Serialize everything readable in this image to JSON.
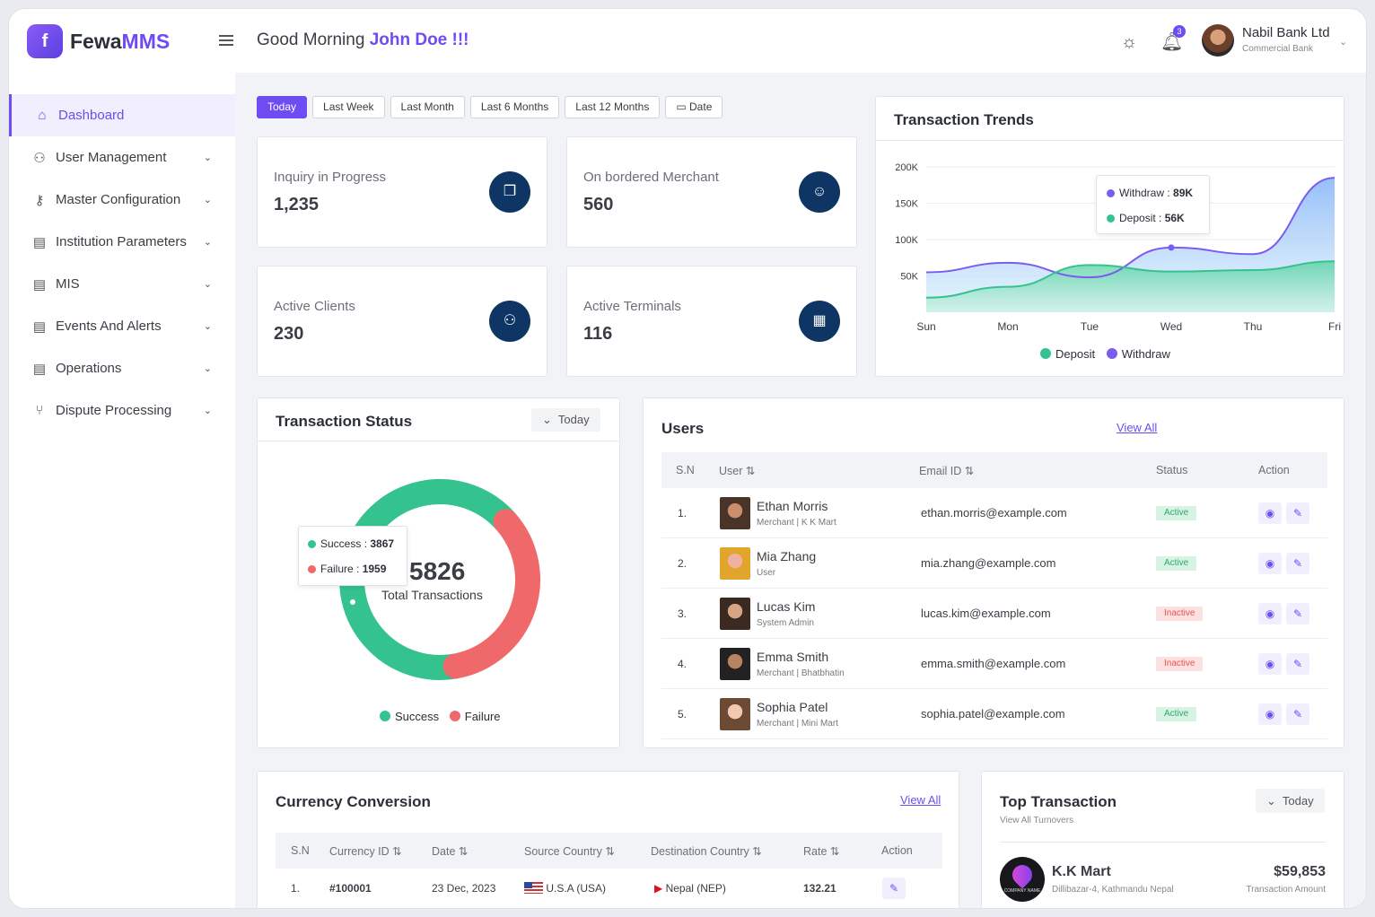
{
  "app": {
    "logo_mark": "f",
    "logo_brand": "Fewa",
    "logo_suffix": "MMS"
  },
  "header": {
    "greeting": "Good Morning",
    "user_name": "John Doe !!!",
    "notification_count": "3",
    "org_name": "Nabil Bank Ltd",
    "org_type": "Commercial Bank"
  },
  "sidebar": {
    "items": [
      {
        "label": "Dashboard",
        "icon": "home-icon"
      },
      {
        "label": "User Management",
        "icon": "users-icon"
      },
      {
        "label": "Master Configuration",
        "icon": "key-icon"
      },
      {
        "label": "Institution Parameters",
        "icon": "inbox-icon"
      },
      {
        "label": "MIS",
        "icon": "inbox-icon"
      },
      {
        "label": "Events And Alerts",
        "icon": "inbox-icon"
      },
      {
        "label": "Operations",
        "icon": "inbox-icon"
      },
      {
        "label": "Dispute Processing",
        "icon": "git-branch-icon"
      }
    ]
  },
  "filters": [
    "Today",
    "Last Week",
    "Last Month",
    "Last 6 Months",
    "Last 12 Months",
    "Date"
  ],
  "stats": [
    {
      "title": "Inquiry in Progress",
      "value": "1,235",
      "icon": "copy-icon"
    },
    {
      "title": "On bordered Merchant",
      "value": "560",
      "icon": "user-check-icon"
    },
    {
      "title": "Active Clients",
      "value": "230",
      "icon": "users-icon"
    },
    {
      "title": "Active Terminals",
      "value": "116",
      "icon": "terminal-icon"
    }
  ],
  "trends": {
    "title": "Transaction Trends",
    "tooltip": {
      "withdraw_label": "Withdraw",
      "withdraw_value": "89K",
      "deposit_label": "Deposit",
      "deposit_value": "56K"
    },
    "legend": [
      "Deposit",
      "Withdraw"
    ],
    "colors": {
      "deposit": "#34c38f",
      "withdraw": "#7b5cf0"
    }
  },
  "status": {
    "title": "Transaction Status",
    "period": "Today",
    "total": "5826",
    "total_label": "Total Transactions",
    "tooltip": {
      "success_label": "Success",
      "success_value": "3867",
      "failure_label": "Failure",
      "failure_value": "1959"
    },
    "legend": [
      "Success",
      "Failure"
    ],
    "colors": {
      "success": "#34c38f",
      "failure": "#f0696a"
    }
  },
  "users": {
    "title": "Users",
    "view_all": "View All",
    "headers": [
      "S.N",
      "User",
      "Email ID",
      "Status",
      "Action"
    ],
    "rows": [
      {
        "sn": "1.",
        "name": "Ethan Morris",
        "role": "Merchant | K K Mart",
        "email": "ethan.morris@example.com",
        "status": "Active"
      },
      {
        "sn": "2.",
        "name": "Mia Zhang",
        "role": "User",
        "email": "mia.zhang@example.com",
        "status": "Active"
      },
      {
        "sn": "3.",
        "name": "Lucas Kim",
        "role": "System Admin",
        "email": "lucas.kim@example.com",
        "status": "Inactive"
      },
      {
        "sn": "4.",
        "name": "Emma Smith",
        "role": "Merchant | Bhatbhatin",
        "email": "emma.smith@example.com",
        "status": "Inactive"
      },
      {
        "sn": "5.",
        "name": "Sophia Patel",
        "role": "Merchant | Mini Mart",
        "email": "sophia.patel@example.com",
        "status": "Active"
      }
    ]
  },
  "currency": {
    "title": "Currency Conversion",
    "view_all": "View All",
    "headers": [
      "S.N",
      "Currency ID",
      "Date",
      "Source Country",
      "Destination Country",
      "Rate",
      "Action"
    ],
    "rows": [
      {
        "sn": "1.",
        "id": "#100001",
        "date": "23 Dec, 2023",
        "source": "U.S.A (USA)",
        "destination": "Nepal (NEP)",
        "rate": "132.21"
      }
    ]
  },
  "top": {
    "title": "Top Transaction",
    "subtitle": "View All Turnovers",
    "period": "Today",
    "logo_caption": "COMPANY NAME",
    "merchant": "K.K Mart",
    "address": "Dillibazar-4, Kathmandu Nepal",
    "amount": "$59,853",
    "amount_label": "Transaction Amount"
  },
  "chart_data": [
    {
      "type": "area",
      "title": "Transaction Trends",
      "x": [
        "Sun",
        "Mon",
        "Tue",
        "Wed",
        "Thu",
        "Fri"
      ],
      "ylim": [
        0,
        200000
      ],
      "yticks": [
        "200K",
        "150K",
        "100K",
        "50K"
      ],
      "series": [
        {
          "name": "Deposit",
          "values": [
            20000,
            35000,
            65000,
            56000,
            58000,
            70000
          ]
        },
        {
          "name": "Withdraw",
          "values": [
            55000,
            68000,
            48000,
            89000,
            80000,
            185000
          ]
        }
      ],
      "legend": "bottom"
    },
    {
      "type": "pie",
      "title": "Transaction Status",
      "categories": [
        "Success",
        "Failure"
      ],
      "values": [
        3867,
        1959
      ],
      "legend": "bottom"
    }
  ]
}
